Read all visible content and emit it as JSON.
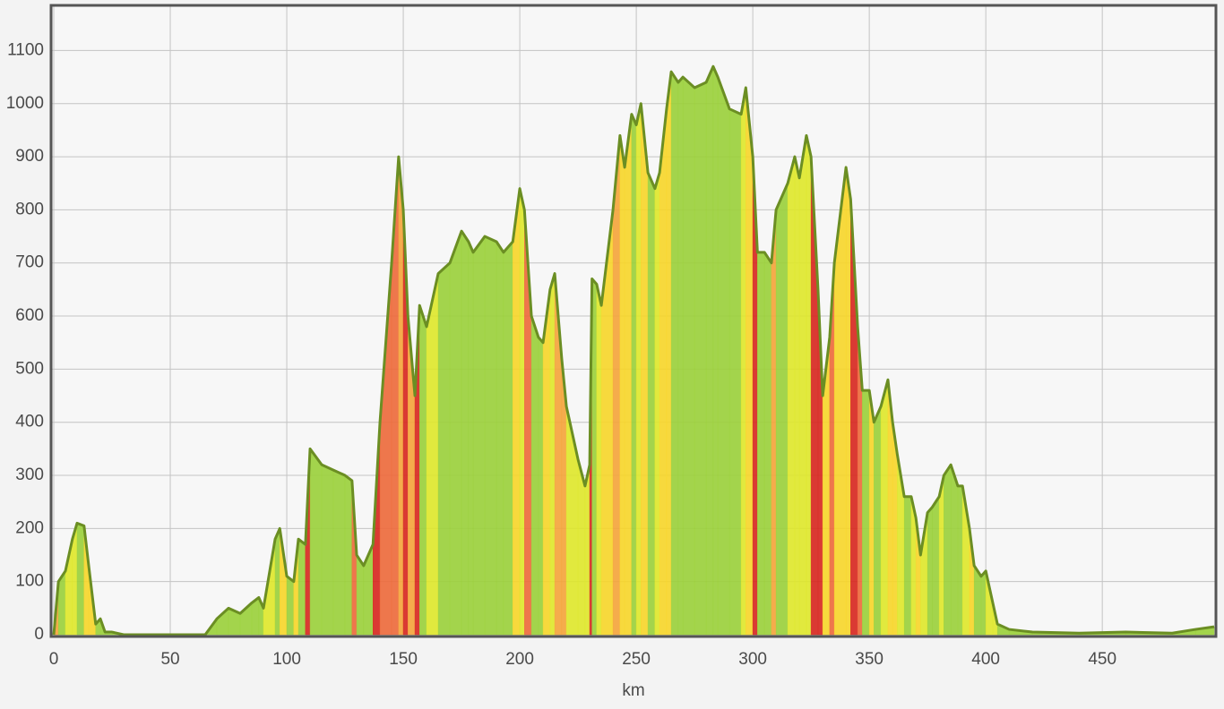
{
  "chart_data": {
    "type": "area",
    "x_label": "km",
    "x": [
      0,
      2,
      5,
      8,
      10,
      13,
      15,
      18,
      20,
      22,
      25,
      30,
      40,
      50,
      60,
      65,
      70,
      75,
      80,
      85,
      88,
      90,
      95,
      97,
      100,
      103,
      105,
      108,
      110,
      115,
      120,
      125,
      128,
      130,
      133,
      137,
      140,
      145,
      148,
      150,
      152,
      155,
      157,
      160,
      165,
      170,
      175,
      178,
      180,
      185,
      190,
      193,
      197,
      200,
      202,
      205,
      208,
      210,
      213,
      215,
      218,
      220,
      225,
      228,
      230,
      231,
      233,
      235,
      240,
      243,
      245,
      248,
      250,
      252,
      255,
      258,
      260,
      263,
      265,
      268,
      270,
      275,
      280,
      283,
      285,
      290,
      295,
      297,
      300,
      302,
      305,
      308,
      310,
      315,
      318,
      320,
      323,
      325,
      328,
      330,
      333,
      335,
      340,
      342,
      345,
      347,
      350,
      352,
      355,
      358,
      360,
      362,
      365,
      368,
      370,
      372,
      375,
      377,
      380,
      382,
      385,
      388,
      390,
      393,
      395,
      398,
      400,
      403,
      405,
      410,
      420,
      440,
      460,
      480,
      490,
      498
    ],
    "values": [
      0,
      100,
      120,
      180,
      210,
      205,
      130,
      20,
      30,
      5,
      5,
      0,
      0,
      0,
      0,
      0,
      30,
      50,
      40,
      60,
      70,
      50,
      180,
      200,
      110,
      100,
      180,
      170,
      350,
      320,
      310,
      300,
      290,
      150,
      130,
      170,
      400,
      700,
      900,
      800,
      600,
      450,
      620,
      580,
      680,
      700,
      760,
      740,
      720,
      750,
      740,
      720,
      740,
      840,
      800,
      600,
      560,
      550,
      650,
      680,
      520,
      430,
      330,
      280,
      320,
      670,
      660,
      620,
      800,
      940,
      880,
      980,
      960,
      1000,
      870,
      840,
      870,
      990,
      1060,
      1040,
      1050,
      1030,
      1040,
      1070,
      1050,
      990,
      980,
      1030,
      900,
      720,
      720,
      700,
      800,
      850,
      900,
      860,
      940,
      900,
      650,
      450,
      560,
      700,
      880,
      820,
      580,
      460,
      460,
      400,
      430,
      480,
      400,
      340,
      260,
      260,
      220,
      150,
      230,
      240,
      260,
      300,
      320,
      280,
      280,
      200,
      130,
      110,
      120,
      60,
      20,
      10,
      5,
      3,
      5,
      3,
      10,
      15
    ],
    "xlim": [
      0,
      498
    ],
    "ylim": [
      0,
      1185
    ],
    "xticks": [
      0,
      50,
      100,
      150,
      200,
      250,
      300,
      350,
      400,
      450
    ],
    "yticks": [
      0,
      100,
      200,
      300,
      400,
      500,
      600,
      700,
      800,
      900,
      1000,
      1100
    ],
    "grid": true,
    "line_color": "#6b8e23",
    "slope_colors": [
      "#9bd13a",
      "#dfe82a",
      "#f8d629",
      "#f5a43a",
      "#ee6a3a",
      "#d7261e"
    ]
  }
}
